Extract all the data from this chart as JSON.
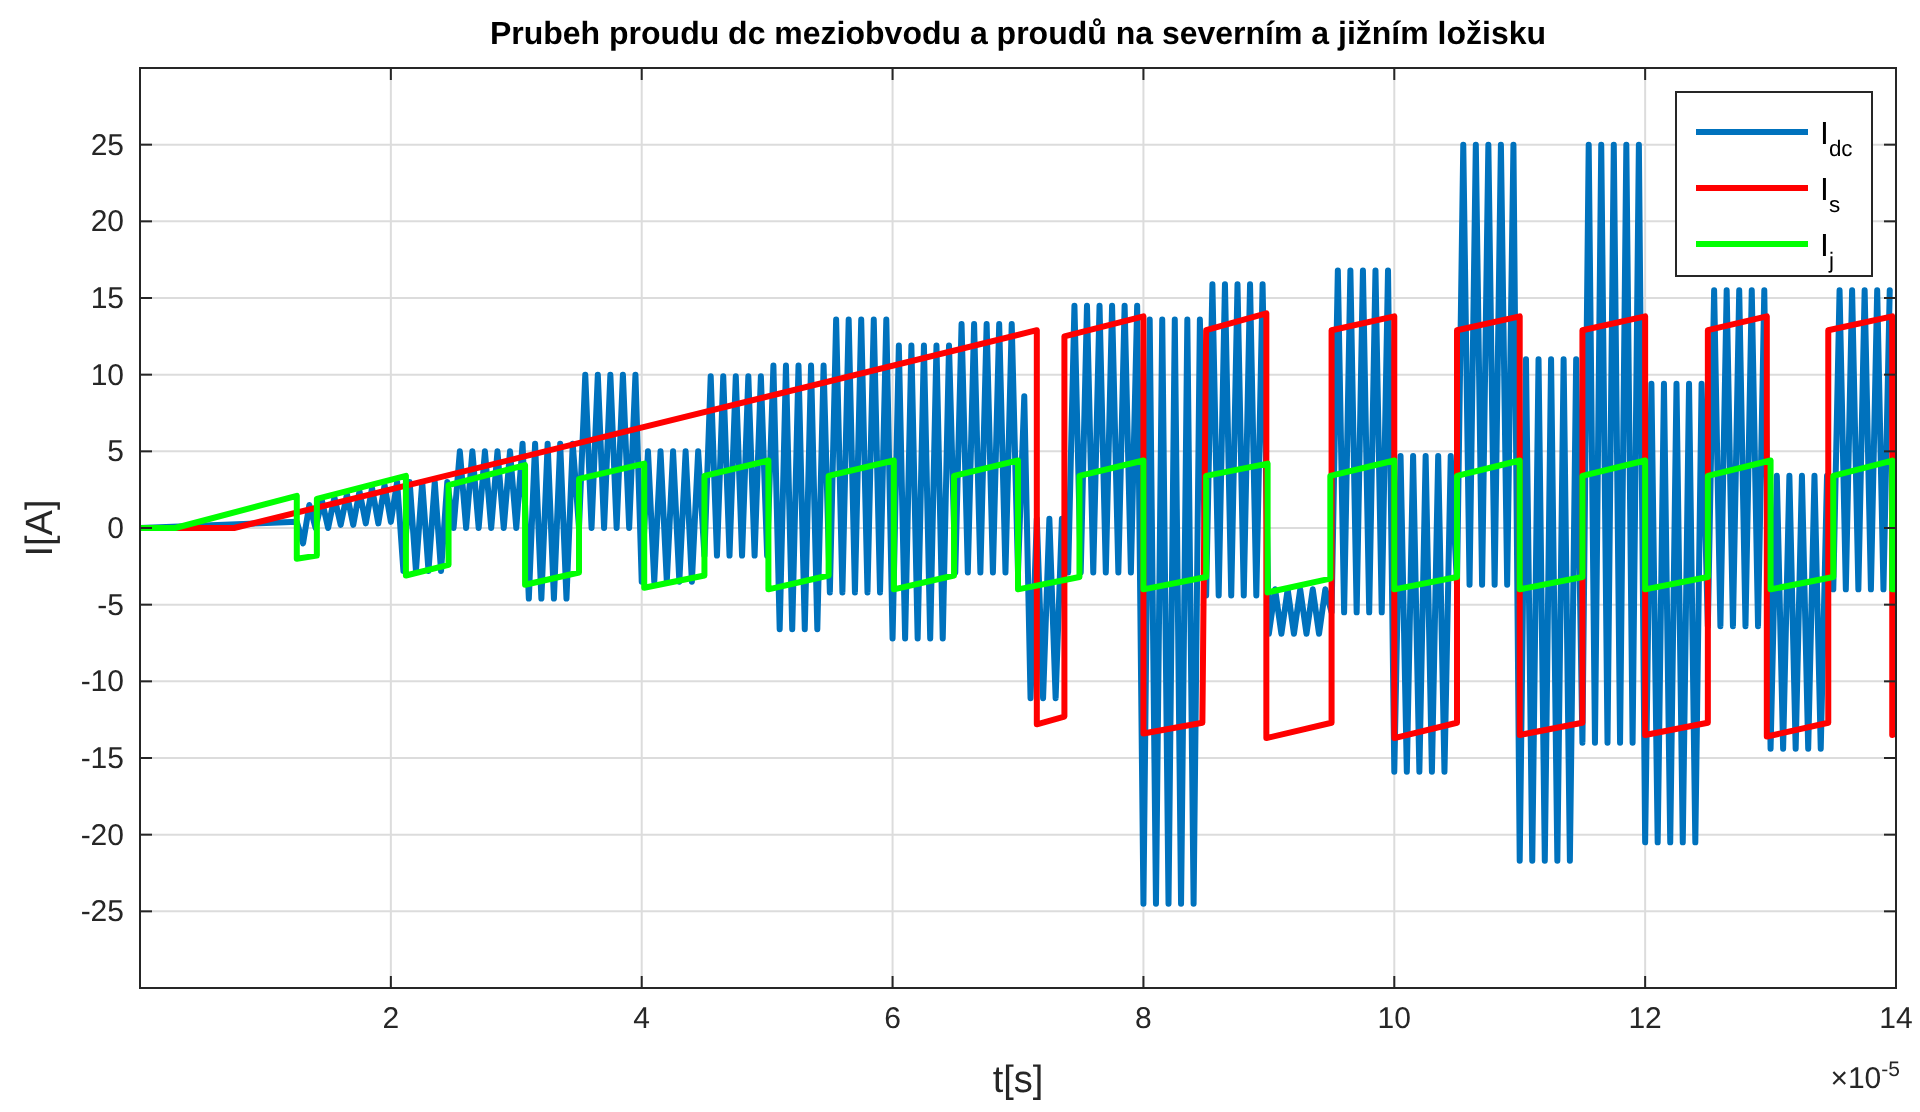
{
  "chart_data": {
    "type": "line",
    "title": "Prubeh proudu dc meziobvodu a proudů na severním a jižním ložisku",
    "xlabel": "t[s]",
    "ylabel": "I[A]",
    "annotations": [
      "×10$^{-5}$"
    ],
    "xlim": [
      0,
      14
    ],
    "xticks": [
      2,
      4,
      6,
      8,
      10,
      12,
      14
    ],
    "ylim": [
      -30,
      30
    ],
    "yticks": [
      -25,
      -20,
      -15,
      -10,
      -5,
      0,
      5,
      10,
      15,
      20,
      25
    ],
    "grid": true,
    "legend": "top right",
    "line_style": "solid",
    "series": [
      {
        "name": "I$_{dc}$",
        "color": "#0072bd",
        "x": [
          0,
          1.25,
          1.3,
          1.35,
          1.4,
          1.45,
          1.5,
          1.55,
          1.6,
          1.65,
          1.7,
          1.75,
          1.8,
          1.85,
          1.9,
          1.95,
          2.0,
          2.05,
          2.1,
          2.15,
          2.2,
          2.25,
          2.3,
          2.35,
          2.4,
          2.45,
          2.5,
          2.55,
          2.6,
          2.65,
          2.7,
          2.75,
          2.8,
          2.85,
          2.9,
          2.95,
          3.0,
          3.05,
          3.1,
          3.15,
          3.2,
          3.25,
          3.3,
          3.35,
          3.4,
          3.45,
          3.5,
          3.55,
          3.6,
          3.65,
          3.7,
          3.75,
          3.8,
          3.85,
          3.9,
          3.95,
          4.0,
          4.05,
          4.1,
          4.15,
          4.2,
          4.25,
          4.3,
          4.35,
          4.4,
          4.45,
          4.5,
          4.55,
          4.6,
          4.65,
          4.7,
          4.75,
          4.8,
          4.85,
          4.9,
          4.95,
          5.0,
          5.05,
          5.1,
          5.15,
          5.2,
          5.25,
          5.3,
          5.35,
          5.4,
          5.45,
          5.5,
          5.55,
          5.6,
          5.65,
          5.7,
          5.75,
          5.8,
          5.85,
          5.9,
          5.95,
          6.0,
          6.05,
          6.1,
          6.15,
          6.2,
          6.25,
          6.3,
          6.35,
          6.4,
          6.45,
          6.5,
          6.55,
          6.6,
          6.65,
          6.7,
          6.75,
          6.8,
          6.85,
          6.9,
          6.95,
          7.0,
          7.05,
          7.1,
          7.15,
          7.2,
          7.25,
          7.3,
          7.35,
          7.4,
          7.45,
          7.5,
          7.55,
          7.6,
          7.65,
          7.7,
          7.75,
          7.8,
          7.85,
          7.9,
          7.95,
          8.0,
          8.05,
          8.1,
          8.15,
          8.2,
          8.25,
          8.3,
          8.35,
          8.4,
          8.45,
          8.5,
          8.55,
          8.6,
          8.65,
          8.7,
          8.75,
          8.8,
          8.85,
          8.9,
          8.95,
          9.0,
          9.05,
          9.1,
          9.15,
          9.2,
          9.25,
          9.3,
          9.35,
          9.4,
          9.45,
          9.5,
          9.55,
          9.6,
          9.65,
          9.7,
          9.75,
          9.8,
          9.85,
          9.9,
          9.95,
          10.0,
          10.05,
          10.1,
          10.15,
          10.2,
          10.25,
          10.3,
          10.35,
          10.4,
          10.45,
          10.5,
          10.55,
          10.6,
          10.65,
          10.7,
          10.75,
          10.8,
          10.85,
          10.9,
          10.95,
          11.0,
          11.05,
          11.1,
          11.15,
          11.2,
          11.25,
          11.3,
          11.35,
          11.4,
          11.45,
          11.5,
          11.55,
          11.6,
          11.65,
          11.7,
          11.75,
          11.8,
          11.85,
          11.9,
          11.95,
          12.0,
          12.05,
          12.1,
          12.15,
          12.2,
          12.25,
          12.3,
          12.35,
          12.4,
          12.45,
          12.5,
          12.55,
          12.6,
          12.65,
          12.7,
          12.75,
          12.8,
          12.85,
          12.9,
          12.95,
          13.0,
          13.05,
          13.1,
          13.15,
          13.2,
          13.25,
          13.3,
          13.35,
          13.4,
          13.45,
          13.5,
          13.55,
          13.6,
          13.65,
          13.7,
          13.75,
          13.8,
          13.85,
          13.9,
          13.95
        ],
        "values": [
          0,
          0.4,
          -1,
          1.5,
          0,
          1.8,
          0,
          2,
          0.2,
          2.2,
          0.2,
          2.4,
          0.3,
          2.6,
          0.3,
          2.8,
          0.4,
          3,
          -2.8,
          3,
          -2.8,
          3,
          -2.8,
          3,
          -2.8,
          3,
          0,
          5,
          0,
          5,
          0,
          5,
          0,
          5,
          0,
          5,
          0,
          5.5,
          -4.6,
          5.5,
          -4.6,
          5.5,
          -4.6,
          5.5,
          -4.6,
          5.5,
          0,
          10,
          0,
          10,
          0,
          10,
          0,
          10,
          0,
          10,
          -3.5,
          5,
          -3.5,
          5,
          -3.5,
          5,
          -3.5,
          5,
          -3.5,
          5,
          -1.8,
          9.9,
          -1.8,
          9.9,
          -1.8,
          9.9,
          -1.8,
          9.9,
          -1.8,
          9.9,
          -1.8,
          10.6,
          -6.6,
          10.6,
          -6.6,
          10.6,
          -6.6,
          10.6,
          -6.6,
          10.6,
          -4.2,
          13.6,
          -4.2,
          13.6,
          -4.2,
          13.6,
          -4.2,
          13.6,
          -4.2,
          13.6,
          -7.2,
          11.9,
          -7.2,
          11.9,
          -7.2,
          11.9,
          -7.2,
          11.9,
          -7.2,
          11.9,
          -2.9,
          13.3,
          -2.9,
          13.3,
          -2.9,
          13.3,
          -2.9,
          13.3,
          -2.9,
          13.3,
          -2.9,
          8.6,
          -11.1,
          0.6,
          -11.1,
          0.6,
          -11.1,
          0.6,
          -2.9,
          14.5,
          -2.9,
          14.5,
          -2.9,
          14.5,
          -2.9,
          14.5,
          -2.9,
          14.5,
          -2.9,
          14.5,
          -24.5,
          13.6,
          -24.5,
          13.6,
          -24.5,
          13.6,
          -24.5,
          13.6,
          -24.5,
          13.6,
          -4.4,
          15.9,
          -4.4,
          15.9,
          -4.4,
          15.9,
          -4.4,
          15.9,
          -4.4,
          15.9,
          -6.9,
          -4,
          -6.9,
          -4,
          -6.9,
          -4,
          -6.9,
          -4,
          -6.9,
          -4,
          -5.5,
          16.8,
          -5.5,
          16.8,
          -5.5,
          16.8,
          -5.5,
          16.8,
          -5.5,
          16.8,
          -15.9,
          4.7,
          -15.9,
          4.7,
          -15.9,
          4.7,
          -15.9,
          4.7,
          -15.9,
          4.7,
          -3.7,
          25,
          -3.7,
          25,
          -3.7,
          25,
          -3.7,
          25,
          -3.7,
          25,
          -21.7,
          11,
          -21.7,
          11,
          -21.7,
          11,
          -21.7,
          11,
          -21.7,
          11,
          -14,
          25,
          -14,
          25,
          -14,
          25,
          -14,
          25,
          -14,
          25,
          -20.5,
          9.4,
          -20.5,
          9.4,
          -20.5,
          9.4,
          -20.5,
          9.4,
          -20.5,
          9.4,
          -6.4,
          15.5,
          -6.4,
          15.5,
          -6.4,
          15.5,
          -6.4,
          15.5,
          -6.4,
          15.5,
          -14.4,
          3.4,
          -14.4,
          3.4,
          -14.4,
          3.4,
          -14.4,
          3.4,
          -14.4,
          3.4,
          -4,
          15.5,
          -4,
          15.5,
          -4,
          15.5,
          -4,
          15.5,
          -4,
          15.5
        ]
      },
      {
        "name": "I$_{s}$",
        "color": "#ff0000",
        "x": [
          0,
          0.75,
          7.15,
          7.15,
          7.37,
          7.37,
          8.0,
          8.0,
          8.47,
          8.5,
          8.98,
          8.98,
          9.5,
          9.5,
          10.0,
          10.0,
          10.5,
          10.5,
          11.0,
          11.0,
          11.5,
          11.5,
          12.0,
          12.0,
          12.5,
          12.5,
          12.97,
          12.97,
          13.46,
          13.46,
          13.97,
          13.97,
          14
        ],
        "values": [
          0,
          0,
          12.9,
          -12.8,
          -12.3,
          12.5,
          13.8,
          -13.4,
          -12.7,
          12.9,
          14,
          -13.7,
          -12.7,
          12.9,
          13.8,
          -13.7,
          -12.7,
          12.9,
          13.8,
          -13.5,
          -12.7,
          12.9,
          13.8,
          -13.5,
          -12.7,
          12.9,
          13.8,
          -13.6,
          -12.7,
          12.9,
          13.8,
          -13.5,
          -13.4
        ]
      },
      {
        "name": "I$_{j}$",
        "color": "#00ff00",
        "x": [
          0,
          0.28,
          1.25,
          1.25,
          1.41,
          1.41,
          2.12,
          2.12,
          2.46,
          2.46,
          3.07,
          3.07,
          3.5,
          3.5,
          4.02,
          4.02,
          4.5,
          4.5,
          5.01,
          5.01,
          5.49,
          5.49,
          6.01,
          6.01,
          6.49,
          6.49,
          7.0,
          7.0,
          7.49,
          7.49,
          8.0,
          8.0,
          8.5,
          8.5,
          8.99,
          8.99,
          9.49,
          9.49,
          10.0,
          10.0,
          10.5,
          10.5,
          11.0,
          11.0,
          11.5,
          11.5,
          12.0,
          12.0,
          12.5,
          12.5,
          13.0,
          13.0,
          13.5,
          13.5,
          13.97,
          13.97,
          14
        ],
        "values": [
          0,
          0,
          2.1,
          -2,
          -1.8,
          1.9,
          3.4,
          -3.1,
          -2.4,
          2.8,
          4.1,
          -3.7,
          -2.9,
          3.2,
          4.2,
          -3.9,
          -3.1,
          3.4,
          4.4,
          -4,
          -3.1,
          3.4,
          4.4,
          -4,
          -3.1,
          3.4,
          4.4,
          -4,
          -3.2,
          3.4,
          4.4,
          -4,
          -3.2,
          3.4,
          4.2,
          -4.2,
          -3.3,
          3.4,
          4.4,
          -4,
          -3.2,
          3.4,
          4.4,
          -4,
          -3.2,
          3.4,
          4.4,
          -4,
          -3.2,
          3.4,
          4.4,
          -4,
          -3.2,
          3.4,
          4.4,
          -4,
          -4
        ]
      }
    ]
  }
}
